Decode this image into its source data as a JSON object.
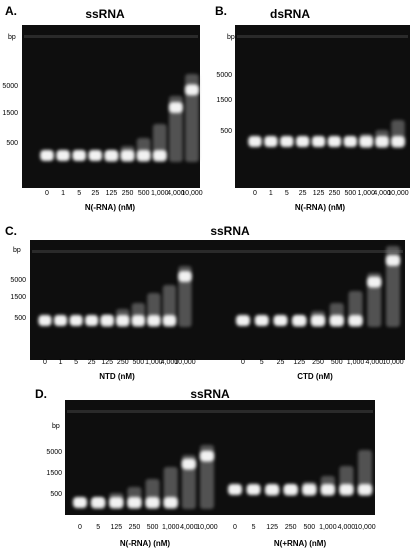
{
  "panels": [
    {
      "label": "A.",
      "title": "ssRNA",
      "bp_label": "bp",
      "markers": [
        "5000",
        "1500",
        "500"
      ],
      "lane_groups": [
        {
          "lanes": [
            "0",
            "1",
            "5",
            "25",
            "125",
            "250",
            "500",
            "1,000",
            "4,000",
            "10,000"
          ],
          "axis_label": "N(-RNA) (nM)"
        }
      ]
    },
    {
      "label": "B.",
      "title": "dsRNA",
      "bp_label": "bp",
      "markers": [
        "5000",
        "1500",
        "500"
      ],
      "lane_groups": [
        {
          "lanes": [
            "0",
            "1",
            "5",
            "25",
            "125",
            "250",
            "500",
            "1,000",
            "4,000",
            "10,000"
          ],
          "axis_label": "N(-RNA) (nM)"
        }
      ]
    },
    {
      "label": "C.",
      "title": "ssRNA",
      "bp_label": "bp",
      "markers": [
        "5000",
        "1500",
        "500"
      ],
      "lane_groups": [
        {
          "lanes": [
            "0",
            "1",
            "5",
            "25",
            "125",
            "250",
            "500",
            "1,000",
            "4,000",
            "10,000"
          ],
          "axis_label": "NTD (nM)"
        },
        {
          "lanes": [
            "0",
            "5",
            "25",
            "125",
            "250",
            "500",
            "1,000",
            "4,000",
            "10,000"
          ],
          "axis_label": "CTD (nM)"
        }
      ]
    },
    {
      "label": "D.",
      "title": "ssRNA",
      "bp_label": "bp",
      "markers": [
        "5000",
        "1500",
        "500"
      ],
      "lane_groups": [
        {
          "lanes": [
            "0",
            "5",
            "125",
            "250",
            "500",
            "1,000",
            "4,000",
            "10,000"
          ],
          "axis_label": "N(-RNA) (nM)"
        },
        {
          "lanes": [
            "0",
            "5",
            "125",
            "250",
            "500",
            "1,000",
            "4,000",
            "10,000"
          ],
          "axis_label": "N(+RNA) (nM)"
        }
      ]
    }
  ]
}
